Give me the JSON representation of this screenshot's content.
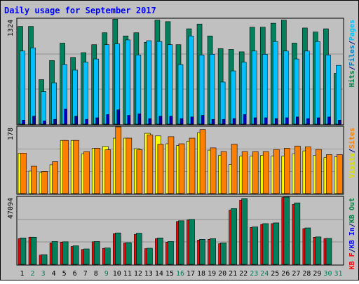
{
  "chart_data": {
    "type": "bar",
    "title": "Daily usage for September 2017",
    "days": [
      "1",
      "2",
      "3",
      "4",
      "5",
      "6",
      "7",
      "8",
      "9",
      "10",
      "11",
      "12",
      "13",
      "14",
      "15",
      "16",
      "17",
      "18",
      "19",
      "20",
      "21",
      "22",
      "23",
      "24",
      "25",
      "26",
      "27",
      "28",
      "29",
      "30",
      "31"
    ],
    "weekend_days": [
      "2",
      "3",
      "9",
      "16",
      "23",
      "24",
      "30",
      "31"
    ],
    "panels": [
      {
        "id": "top",
        "ymax_label": "1324",
        "ymax": 1324,
        "ylim": [
          0,
          1324
        ],
        "side_labels": [
          {
            "text": "Hits",
            "color": "#008040"
          },
          {
            "text": "/",
            "color": "#000080"
          },
          {
            "text": "Files",
            "color": "#0080c0"
          },
          {
            "text": "/",
            "color": "#000080"
          },
          {
            "text": "Pages",
            "color": "#00c0ff"
          }
        ],
        "series": [
          {
            "name": "Hits",
            "color": "#00805c",
            "values": [
              1230,
              1230,
              560,
              800,
              1020,
              840,
              900,
              1000,
              1150,
              1320,
              1110,
              1150,
              1030,
              1310,
              1290,
              1000,
              1200,
              1260,
              1110,
              950,
              940,
              910,
              1220,
              1220,
              1270,
              1310,
              1020,
              1210,
              1160,
              1200,
              640
            ]
          },
          {
            "name": "Files",
            "color": "#00c0ff",
            "values": [
              920,
              960,
              410,
              520,
              750,
              680,
              780,
              820,
              1000,
              1010,
              1060,
              870,
              1050,
              1040,
              1000,
              750,
              1110,
              870,
              880,
              530,
              670,
              780,
              920,
              880,
              1040,
              920,
              820,
              920,
              1040,
              870,
              740
            ]
          },
          {
            "name": "Pages",
            "color": "#0000c0",
            "values": [
              50,
              100,
              40,
              60,
              190,
              100,
              60,
              80,
              120,
              180,
              110,
              130,
              70,
              100,
              100,
              70,
              90,
              110,
              60,
              60,
              70,
              120,
              80,
              80,
              70,
              80,
              90,
              70,
              80,
              90,
              50
            ]
          }
        ]
      },
      {
        "id": "middle",
        "ymax_label": "178",
        "ymax": 178,
        "ylim": [
          0,
          178
        ],
        "side_labels": [
          {
            "text": "Visits",
            "color": "#e0e000"
          },
          {
            "text": "/",
            "color": "#000080"
          },
          {
            "text": "Sites",
            "color": "#ff8000"
          }
        ],
        "series": [
          {
            "name": "Visits",
            "color": "#ffff00",
            "values": [
              108,
              60,
              56,
              77,
              142,
              142,
              106,
              121,
              126,
              148,
              148,
              120,
              161,
              154,
              133,
              128,
              140,
              163,
              116,
              102,
              78,
              100,
              100,
              102,
              100,
              100,
              106,
              114,
              102,
              96,
              98
            ]
          },
          {
            "name": "Sites",
            "color": "#ff8000",
            "values": [
              108,
              73,
              59,
              85,
              142,
              142,
              112,
              121,
              117,
              178,
              148,
              117,
              157,
              132,
              152,
              133,
              148,
              171,
              122,
              112,
              132,
              112,
              112,
              112,
              118,
              121,
              127,
              125,
              118,
              104,
              104
            ]
          }
        ]
      },
      {
        "id": "bottom",
        "ymax_label": "47094",
        "ymax": 47094,
        "ylim": [
          0,
          47094
        ],
        "side_labels": [
          {
            "text": "KB F",
            "color": "#ff0000"
          },
          {
            "text": "/",
            "color": "#000080"
          },
          {
            "text": "KB In",
            "color": "#0000ff"
          },
          {
            "text": "/",
            "color": "#000080"
          },
          {
            "text": "KB Out",
            "color": "#008040"
          }
        ],
        "series": [
          {
            "name": "KB F",
            "color": "#ff0000",
            "values": [
              18000,
              19000,
              6500,
              15000,
              15500,
              12500,
              10400,
              15800,
              11200,
              21500,
              15000,
              21000,
              11000,
              18000,
              15500,
              30000,
              31000,
              17000,
              17500,
              14500,
              38000,
              45000,
              25800,
              28000,
              28500,
              46800,
              42000,
              25000,
              19000,
              18000,
              0
            ]
          },
          {
            "name": "KB Out",
            "color": "#00805c",
            "values": [
              18500,
              19000,
              6800,
              16000,
              15800,
              13000,
              10800,
              16000,
              11500,
              22000,
              15200,
              21800,
              11300,
              18500,
              16000,
              30500,
              31500,
              17500,
              18000,
              15000,
              39000,
              46000,
              26200,
              28500,
              29000,
              47094,
              43000,
              25500,
              19200,
              18200,
              0
            ]
          }
        ]
      }
    ]
  }
}
